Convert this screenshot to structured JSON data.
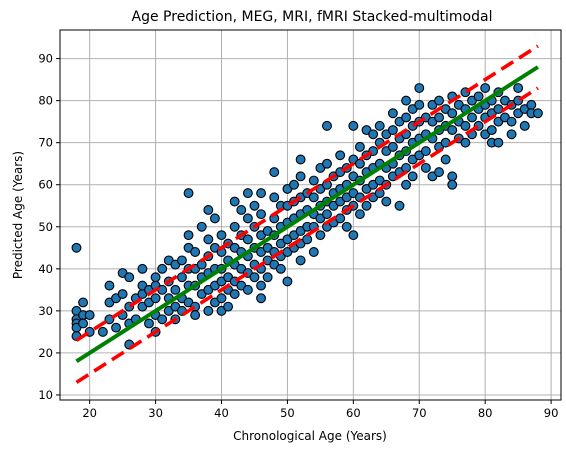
{
  "chart_data": {
    "type": "scatter",
    "title": "Age Prediction, MEG, MRI, fMRI Stacked-multimodal",
    "xlabel": "Chronological Age (Years)",
    "ylabel": "Predicted Age (Years)",
    "xlim": [
      15.5,
      91.5
    ],
    "ylim": [
      8.8,
      96.8
    ],
    "xticks": [
      20,
      30,
      40,
      50,
      60,
      70,
      80,
      90
    ],
    "yticks": [
      10,
      20,
      30,
      40,
      50,
      60,
      70,
      80,
      90
    ],
    "grid": true,
    "colors": {
      "points_fill": "#1f77b4",
      "points_edge": "#000000",
      "fit_line": "#008000",
      "band_line": "#ff0000",
      "grid": "#b0b0b0"
    },
    "lines": [
      {
        "role": "fit",
        "style": "solid",
        "x": [
          18,
          88
        ],
        "y": [
          18,
          88
        ]
      },
      {
        "role": "upper-band",
        "style": "dashed",
        "x": [
          18,
          88
        ],
        "y": [
          23,
          93
        ]
      },
      {
        "role": "lower-band",
        "style": "dashed",
        "x": [
          18,
          88
        ],
        "y": [
          13,
          83
        ]
      }
    ],
    "points": [
      [
        18,
        45
      ],
      [
        18,
        30
      ],
      [
        18,
        28
      ],
      [
        18,
        27
      ],
      [
        18,
        26
      ],
      [
        18,
        24
      ],
      [
        19,
        32
      ],
      [
        19,
        29
      ],
      [
        19,
        27
      ],
      [
        20,
        25
      ],
      [
        20,
        29
      ],
      [
        22,
        25
      ],
      [
        23,
        32
      ],
      [
        23,
        36
      ],
      [
        23,
        28
      ],
      [
        24,
        33
      ],
      [
        24,
        26
      ],
      [
        25,
        39
      ],
      [
        25,
        34
      ],
      [
        25,
        29
      ],
      [
        26,
        31
      ],
      [
        26,
        38
      ],
      [
        26,
        22
      ],
      [
        26,
        27
      ],
      [
        27,
        33
      ],
      [
        27,
        28
      ],
      [
        28,
        34
      ],
      [
        28,
        40
      ],
      [
        28,
        31
      ],
      [
        28,
        36
      ],
      [
        29,
        32
      ],
      [
        29,
        35
      ],
      [
        29,
        27
      ],
      [
        30,
        36
      ],
      [
        30,
        38
      ],
      [
        30,
        33
      ],
      [
        30,
        25
      ],
      [
        30,
        29
      ],
      [
        31,
        35
      ],
      [
        31,
        40
      ],
      [
        31,
        28
      ],
      [
        32,
        42
      ],
      [
        32,
        37
      ],
      [
        32,
        33
      ],
      [
        32,
        30
      ],
      [
        33,
        41
      ],
      [
        33,
        35
      ],
      [
        33,
        31
      ],
      [
        33,
        28
      ],
      [
        34,
        38
      ],
      [
        34,
        33
      ],
      [
        34,
        42
      ],
      [
        34,
        30
      ],
      [
        35,
        58
      ],
      [
        35,
        48
      ],
      [
        35,
        45
      ],
      [
        35,
        40
      ],
      [
        35,
        36
      ],
      [
        35,
        32
      ],
      [
        36,
        44
      ],
      [
        36,
        40
      ],
      [
        36,
        36
      ],
      [
        36,
        31
      ],
      [
        36,
        29
      ],
      [
        37,
        41
      ],
      [
        37,
        38
      ],
      [
        37,
        34
      ],
      [
        37,
        50
      ],
      [
        38,
        54
      ],
      [
        38,
        47
      ],
      [
        38,
        43
      ],
      [
        38,
        39
      ],
      [
        38,
        35
      ],
      [
        38,
        30
      ],
      [
        39,
        45
      ],
      [
        39,
        40
      ],
      [
        39,
        36
      ],
      [
        39,
        32
      ],
      [
        39,
        52
      ],
      [
        40,
        48
      ],
      [
        40,
        44
      ],
      [
        40,
        40
      ],
      [
        40,
        37
      ],
      [
        40,
        33
      ],
      [
        40,
        30
      ],
      [
        41,
        46
      ],
      [
        41,
        42
      ],
      [
        41,
        38
      ],
      [
        41,
        35
      ],
      [
        41,
        31
      ],
      [
        42,
        56
      ],
      [
        42,
        50
      ],
      [
        42,
        45
      ],
      [
        42,
        41
      ],
      [
        42,
        37
      ],
      [
        42,
        34
      ],
      [
        43,
        48
      ],
      [
        43,
        44
      ],
      [
        43,
        40
      ],
      [
        43,
        36
      ],
      [
        43,
        54
      ],
      [
        44,
        58
      ],
      [
        44,
        52
      ],
      [
        44,
        47
      ],
      [
        44,
        43
      ],
      [
        44,
        39
      ],
      [
        44,
        35
      ],
      [
        45,
        55
      ],
      [
        45,
        50
      ],
      [
        45,
        45
      ],
      [
        45,
        41
      ],
      [
        45,
        38
      ],
      [
        46,
        58
      ],
      [
        46,
        53
      ],
      [
        46,
        48
      ],
      [
        46,
        44
      ],
      [
        46,
        40
      ],
      [
        46,
        36
      ],
      [
        46,
        33
      ],
      [
        47,
        49
      ],
      [
        47,
        45
      ],
      [
        47,
        42
      ],
      [
        47,
        38
      ],
      [
        48,
        63
      ],
      [
        48,
        57
      ],
      [
        48,
        52
      ],
      [
        48,
        48
      ],
      [
        48,
        44
      ],
      [
        48,
        41
      ],
      [
        49,
        55
      ],
      [
        49,
        50
      ],
      [
        49,
        46
      ],
      [
        49,
        43
      ],
      [
        49,
        40
      ],
      [
        50,
        59
      ],
      [
        50,
        55
      ],
      [
        50,
        51
      ],
      [
        50,
        47
      ],
      [
        50,
        44
      ],
      [
        50,
        37
      ],
      [
        51,
        60
      ],
      [
        51,
        56
      ],
      [
        51,
        52
      ],
      [
        51,
        48
      ],
      [
        51,
        45
      ],
      [
        52,
        66
      ],
      [
        52,
        62
      ],
      [
        52,
        57
      ],
      [
        52,
        53
      ],
      [
        52,
        49
      ],
      [
        52,
        46
      ],
      [
        52,
        42
      ],
      [
        53,
        58
      ],
      [
        53,
        54
      ],
      [
        53,
        50
      ],
      [
        53,
        47
      ],
      [
        54,
        61
      ],
      [
        54,
        57
      ],
      [
        54,
        53
      ],
      [
        54,
        50
      ],
      [
        54,
        44
      ],
      [
        55,
        64
      ],
      [
        55,
        59
      ],
      [
        55,
        55
      ],
      [
        55,
        52
      ],
      [
        55,
        48
      ],
      [
        56,
        74
      ],
      [
        56,
        65
      ],
      [
        56,
        60
      ],
      [
        56,
        56
      ],
      [
        56,
        53
      ],
      [
        56,
        50
      ],
      [
        57,
        62
      ],
      [
        57,
        58
      ],
      [
        57,
        55
      ],
      [
        57,
        51
      ],
      [
        58,
        67
      ],
      [
        58,
        63
      ],
      [
        58,
        59
      ],
      [
        58,
        56
      ],
      [
        58,
        52
      ],
      [
        59,
        64
      ],
      [
        59,
        60
      ],
      [
        59,
        57
      ],
      [
        59,
        54
      ],
      [
        59,
        50
      ],
      [
        60,
        74
      ],
      [
        60,
        66
      ],
      [
        60,
        62
      ],
      [
        60,
        58
      ],
      [
        60,
        55
      ],
      [
        60,
        48
      ],
      [
        61,
        69
      ],
      [
        61,
        65
      ],
      [
        61,
        61
      ],
      [
        61,
        57
      ],
      [
        61,
        53
      ],
      [
        62,
        73
      ],
      [
        62,
        67
      ],
      [
        62,
        63
      ],
      [
        62,
        59
      ],
      [
        62,
        55
      ],
      [
        63,
        72
      ],
      [
        63,
        68
      ],
      [
        63,
        64
      ],
      [
        63,
        60
      ],
      [
        63,
        57
      ],
      [
        64,
        74
      ],
      [
        64,
        70
      ],
      [
        64,
        65
      ],
      [
        64,
        61
      ],
      [
        64,
        58
      ],
      [
        65,
        72
      ],
      [
        65,
        68
      ],
      [
        65,
        64
      ],
      [
        65,
        60
      ],
      [
        65,
        56
      ],
      [
        66,
        77
      ],
      [
        66,
        73
      ],
      [
        66,
        69
      ],
      [
        66,
        65
      ],
      [
        66,
        62
      ],
      [
        67,
        75
      ],
      [
        67,
        71
      ],
      [
        67,
        67
      ],
      [
        67,
        63
      ],
      [
        67,
        55
      ],
      [
        68,
        80
      ],
      [
        68,
        76
      ],
      [
        68,
        72
      ],
      [
        68,
        68
      ],
      [
        68,
        64
      ],
      [
        68,
        60
      ],
      [
        69,
        78
      ],
      [
        69,
        74
      ],
      [
        69,
        70
      ],
      [
        69,
        66
      ],
      [
        69,
        62
      ],
      [
        70,
        83
      ],
      [
        70,
        79
      ],
      [
        70,
        75
      ],
      [
        70,
        71
      ],
      [
        70,
        67
      ],
      [
        71,
        76
      ],
      [
        71,
        72
      ],
      [
        71,
        68
      ],
      [
        71,
        64
      ],
      [
        72,
        79
      ],
      [
        72,
        75
      ],
      [
        72,
        71
      ],
      [
        72,
        62
      ],
      [
        73,
        80
      ],
      [
        73,
        76
      ],
      [
        73,
        73
      ],
      [
        73,
        69
      ],
      [
        73,
        63
      ],
      [
        74,
        78
      ],
      [
        74,
        74
      ],
      [
        74,
        70
      ],
      [
        74,
        66
      ],
      [
        75,
        81
      ],
      [
        75,
        77
      ],
      [
        75,
        73
      ],
      [
        75,
        62
      ],
      [
        75,
        60
      ],
      [
        76,
        79
      ],
      [
        76,
        75
      ],
      [
        76,
        71
      ],
      [
        77,
        82
      ],
      [
        77,
        78
      ],
      [
        77,
        74
      ],
      [
        77,
        70
      ],
      [
        78,
        80
      ],
      [
        78,
        76
      ],
      [
        78,
        72
      ],
      [
        79,
        81
      ],
      [
        79,
        78
      ],
      [
        79,
        74
      ],
      [
        80,
        83
      ],
      [
        80,
        79
      ],
      [
        80,
        76
      ],
      [
        80,
        72
      ],
      [
        81,
        80
      ],
      [
        81,
        77
      ],
      [
        81,
        73
      ],
      [
        81,
        70
      ],
      [
        82,
        82
      ],
      [
        82,
        78
      ],
      [
        82,
        75
      ],
      [
        82,
        70
      ],
      [
        83,
        80
      ],
      [
        83,
        76
      ],
      [
        84,
        79
      ],
      [
        84,
        75
      ],
      [
        84,
        72
      ],
      [
        85,
        83
      ],
      [
        85,
        80
      ],
      [
        85,
        77
      ],
      [
        86,
        78
      ],
      [
        86,
        74
      ],
      [
        87,
        79
      ],
      [
        87,
        77
      ],
      [
        88,
        77
      ]
    ]
  }
}
